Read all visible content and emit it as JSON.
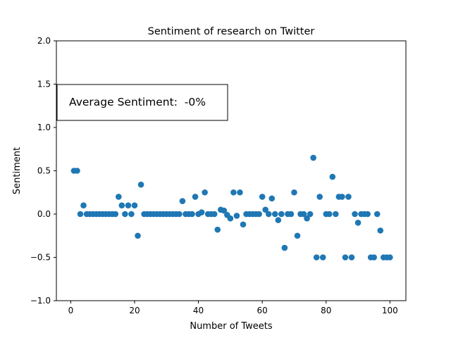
{
  "chart_data": {
    "type": "scatter",
    "title": "Sentiment of research on Twitter",
    "xlabel": "Number of Tweets",
    "ylabel": "Sentiment",
    "xlim": [
      -4.5,
      105
    ],
    "ylim": [
      -1.0,
      2.0
    ],
    "xticks": [
      0,
      20,
      40,
      60,
      80,
      100
    ],
    "yticks": [
      -1.0,
      -0.5,
      0.0,
      0.5,
      1.0,
      1.5,
      2.0
    ],
    "ytick_labels": [
      "−1.0",
      "−0.5",
      "0.0",
      "0.5",
      "1.0",
      "1.5",
      "2.0"
    ],
    "annotation": "Average Sentiment:  -0%",
    "grid": false,
    "color": "#1f77b4",
    "series": [
      {
        "x": [
          1,
          2,
          3,
          4,
          5,
          6,
          7,
          8,
          9,
          10,
          11,
          12,
          13,
          14,
          15,
          16,
          17,
          18,
          19,
          20,
          21,
          22,
          23,
          24,
          25,
          26,
          27,
          28,
          29,
          30,
          31,
          32,
          33,
          34,
          35,
          36,
          37,
          38,
          39,
          40,
          41,
          42,
          43,
          44,
          45,
          46,
          47,
          48,
          49,
          50,
          51,
          52,
          53,
          54,
          55,
          56,
          57,
          58,
          59,
          60,
          61,
          62,
          63,
          64,
          65,
          66,
          67,
          68,
          69,
          70,
          71,
          72,
          73,
          74,
          75,
          76,
          77,
          78,
          79,
          80,
          81,
          82,
          83,
          84,
          85,
          86,
          87,
          88,
          89,
          90,
          91,
          92,
          93,
          94,
          95,
          96,
          97,
          98,
          99,
          100
        ],
        "y": [
          0.5,
          0.5,
          0,
          0.1,
          0,
          0,
          0,
          0,
          0,
          0,
          0,
          0,
          0,
          0,
          0.2,
          0.1,
          0,
          0.1,
          0,
          0.1,
          -0.25,
          0.34,
          0,
          0,
          0,
          0,
          0,
          0,
          0,
          0,
          0,
          0,
          0,
          0,
          0.15,
          0,
          0,
          0,
          0.2,
          0,
          0.02,
          0.25,
          0,
          0,
          0,
          -0.18,
          0.05,
          0.04,
          -0.01,
          -0.05,
          0.25,
          -0.02,
          0.25,
          -0.12,
          0,
          0,
          0,
          0,
          0,
          0.2,
          0.05,
          0,
          0.18,
          0,
          -0.07,
          0,
          -0.39,
          0,
          0,
          0.25,
          -0.25,
          0,
          0,
          -0.05,
          0,
          0.65,
          -0.5,
          0.2,
          -0.5,
          0,
          0,
          0.43,
          0,
          0.2,
          0.2,
          -0.5,
          0.2,
          -0.5,
          0,
          -0.1,
          0,
          0,
          0,
          -0.5,
          -0.5,
          0,
          -0.19,
          -0.5,
          -0.5,
          -0.5
        ]
      }
    ]
  }
}
